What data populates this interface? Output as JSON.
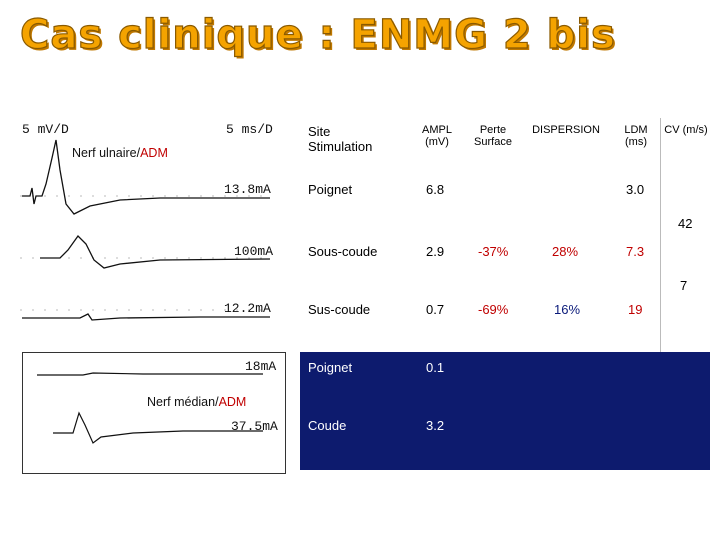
{
  "title": "Cas clinique : ENMG 2 bis",
  "emg": {
    "scale_left": "5 mV/D",
    "scale_right": "5 ms/D",
    "nerve1_prefix": "Nerf ulnaire/",
    "nerve1_muscle": "ADM",
    "currents": [
      "13.8mA",
      "100mA",
      "12.2mA"
    ],
    "nerve2_prefix": "Nerf médian/",
    "nerve2_muscle": "ADM",
    "currents2": [
      "18mA",
      "37.5mA"
    ]
  },
  "table": {
    "headers": {
      "site": "Site Stimulation",
      "ampl": "AMPL (mV)",
      "perte": "Perte Surface",
      "dispersion": "DISPERSION",
      "ldm": "LDM (ms)",
      "cv": "CV (m/s)"
    },
    "rows": [
      {
        "site": "Poignet",
        "ampl": "6.8",
        "perte": "",
        "dispersion": "",
        "ldm": "3.0",
        "cv": ""
      },
      {
        "site": "Sous-coude",
        "ampl": "2.9",
        "perte": "-37%",
        "dispersion": "28%",
        "ldm": "7.3",
        "cv": "42"
      },
      {
        "site": "Sus-coude",
        "ampl": "0.7",
        "perte": "-69%",
        "dispersion": "16%",
        "ldm": "19",
        "cv": "7"
      },
      {
        "site": "Poignet",
        "ampl": "0.1"
      },
      {
        "site": "Coude",
        "ampl": "3.2"
      }
    ]
  }
}
